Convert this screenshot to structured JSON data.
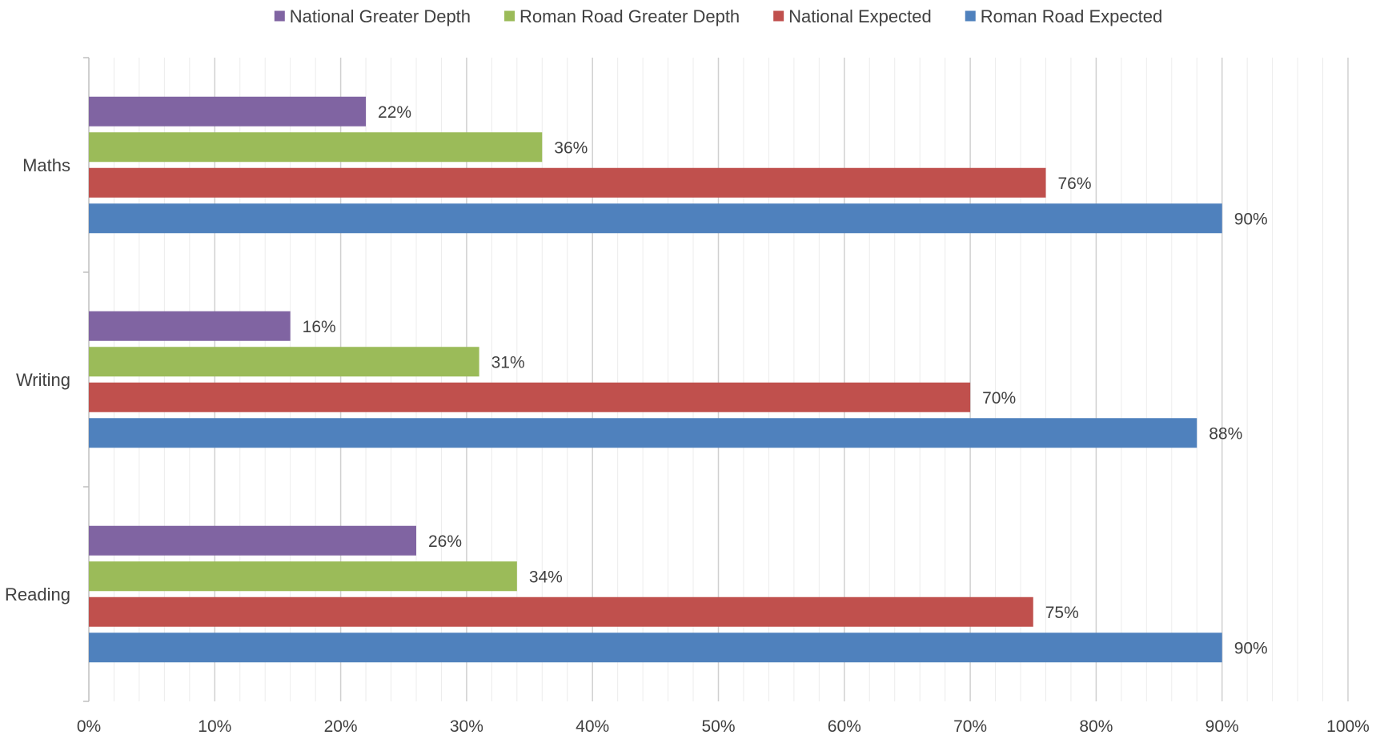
{
  "chart_data": {
    "type": "bar",
    "orientation": "horizontal",
    "title": "",
    "xlabel": "",
    "ylabel": "",
    "categories": [
      "Maths",
      "Writing",
      "Reading"
    ],
    "series": [
      {
        "name": "National Greater Depth",
        "color": "#8064A2",
        "values": [
          22,
          16,
          26
        ],
        "labels": [
          "22%",
          "16%",
          "26%"
        ]
      },
      {
        "name": "Roman Road Greater Depth",
        "color": "#9BBB59",
        "values": [
          36,
          31,
          34
        ],
        "labels": [
          "36%",
          "31%",
          "34%"
        ]
      },
      {
        "name": "National Expected",
        "color": "#C0504D",
        "values": [
          76,
          70,
          75
        ],
        "labels": [
          "76%",
          "70%",
          "75%"
        ]
      },
      {
        "name": "Roman Road Expected",
        "color": "#4F81BD",
        "values": [
          90,
          88,
          90
        ],
        "labels": [
          "90%",
          "88%",
          "90%"
        ]
      }
    ],
    "xlim": [
      0,
      100
    ],
    "xticks": [
      0,
      10,
      20,
      30,
      40,
      50,
      60,
      70,
      80,
      90,
      100
    ],
    "xtick_labels": [
      "0%",
      "10%",
      "20%",
      "30%",
      "40%",
      "50%",
      "60%",
      "70%",
      "80%",
      "90%",
      "100%"
    ],
    "grid": {
      "major": true,
      "minor": true
    },
    "legend_position": "top"
  }
}
